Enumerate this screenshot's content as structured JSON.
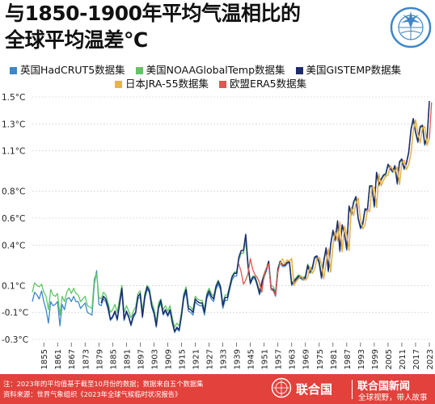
{
  "header": {
    "title_line1": "与1850-1900年平均气温相比的",
    "title_line2": "全球平均温差℃"
  },
  "legend": [
    {
      "name": "英国HadCRUT5数据集",
      "color": "#3f86c6"
    },
    {
      "name": "美国NOAAGlobalTemp数据集",
      "color": "#5cc765"
    },
    {
      "name": "美国GISTEMP数据集",
      "color": "#1d2b6b"
    },
    {
      "name": "日本JRA-55数据集",
      "color": "#e7b640"
    },
    {
      "name": "欧盟ERA5数据集",
      "color": "#e0584f"
    }
  ],
  "chart_data": {
    "type": "line",
    "x_range": [
      1850,
      2023
    ],
    "ylim": [
      -0.3,
      1.5
    ],
    "y_ticks": [
      "1.5°C",
      "1.3°C",
      "1.1°C",
      "0.8°C",
      "0.6°C",
      "0.4°C",
      "0.1°C",
      "-0.1°C",
      "-0.3°C"
    ],
    "y_tick_values": [
      1.5,
      1.3,
      1.1,
      0.8,
      0.6,
      0.4,
      0.1,
      -0.1,
      -0.3
    ],
    "x_ticks": [
      1855,
      1861,
      1867,
      1873,
      1879,
      1885,
      1891,
      1897,
      1903,
      1909,
      1915,
      1921,
      1927,
      1933,
      1939,
      1945,
      1951,
      1957,
      1963,
      1969,
      1975,
      1981,
      1987,
      1993,
      1999,
      2005,
      2011,
      2017,
      2023
    ],
    "grid": "horizontal",
    "series": [
      {
        "name": "英国HadCRUT5数据集",
        "color": "#3f86c6",
        "start": 1850,
        "values": [
          -0.02,
          0.05,
          0.03,
          0.0,
          0.06,
          -0.02,
          -0.08,
          -0.18,
          -0.02,
          -0.05,
          -0.04,
          -0.02,
          -0.2,
          -0.04,
          -0.08,
          0.0,
          0.01,
          -0.02,
          0.02,
          -0.02,
          -0.02,
          -0.07,
          -0.05,
          -0.03,
          -0.1,
          -0.11,
          -0.12,
          0.11,
          0.21,
          -0.04,
          -0.05,
          0.0,
          -0.02,
          -0.08,
          -0.16,
          -0.14,
          -0.1,
          -0.16,
          -0.05,
          0.06,
          -0.16,
          -0.1,
          -0.14,
          -0.2,
          -0.14,
          -0.11,
          0.0,
          0.02,
          -0.14,
          0.0,
          0.07,
          0.05,
          -0.06,
          -0.11,
          -0.21,
          -0.07,
          -0.03,
          -0.12,
          -0.09,
          -0.13,
          -0.09,
          -0.18,
          -0.25,
          -0.22,
          -0.24,
          -0.13,
          0.0,
          0.05,
          -0.09,
          -0.1,
          -0.12,
          -0.02,
          -0.04,
          -0.05,
          -0.05,
          -0.12,
          0.0,
          0.04,
          0.0,
          -0.02,
          0.07,
          0.11,
          0.07,
          -0.07,
          -0.01,
          -0.01,
          0.07,
          0.14,
          0.17,
          0.17,
          0.29,
          0.34,
          0.34,
          0.45,
          0.23,
          0.11,
          0.15,
          0.15,
          0.1,
          0.03,
          0.1,
          0.16,
          0.21,
          0.27,
          0.07,
          0.06,
          0.02,
          0.21,
          0.27,
          0.24,
          0.24,
          0.26,
          0.27,
          0.1,
          0.12,
          0.14,
          0.16,
          0.15,
          0.14,
          0.15,
          0.24,
          0.19,
          0.22,
          0.3,
          0.31,
          0.26,
          0.15,
          0.27,
          0.37,
          0.2,
          0.4,
          0.5,
          0.43,
          0.57,
          0.35,
          0.54,
          0.48,
          0.36,
          0.68,
          0.62,
          0.71,
          0.75,
          0.59,
          0.52,
          0.55,
          0.66,
          0.65,
          0.83,
          0.83,
          0.68,
          0.93,
          0.84,
          0.88,
          0.91,
          0.92,
          0.99,
          0.96,
          0.94,
          0.98,
          0.85,
          1.01,
          1.03,
          0.96,
          1.0,
          1.08,
          1.25,
          1.33,
          1.23,
          1.16,
          1.27,
          1.28,
          1.14,
          1.19,
          1.45
        ]
      },
      {
        "name": "美国NOAAGlobalTemp数据集",
        "color": "#5cc765",
        "start": 1850,
        "values": [
          0.05,
          0.12,
          0.1,
          0.09,
          0.11,
          0.05,
          0.02,
          -0.08,
          0.07,
          0.03,
          0.02,
          0.04,
          -0.12,
          0.02,
          -0.02,
          0.05,
          0.08,
          0.04,
          0.08,
          0.04,
          0.03,
          -0.02,
          0.0,
          0.02,
          -0.05,
          -0.06,
          -0.07,
          0.15,
          0.19,
          0.01,
          0.0,
          0.05,
          0.03,
          -0.03,
          -0.1,
          -0.08,
          -0.04,
          -0.1,
          0.0,
          0.1,
          -0.1,
          -0.05,
          -0.09,
          -0.14,
          -0.09,
          -0.06,
          0.04,
          0.06,
          -0.09,
          0.04,
          0.1,
          0.08,
          -0.02,
          -0.07,
          -0.17,
          -0.03,
          0.0,
          -0.08,
          -0.05,
          -0.09,
          -0.05,
          -0.14,
          -0.21,
          -0.18,
          -0.2,
          -0.09,
          0.04,
          0.09,
          -0.05,
          -0.06,
          -0.08,
          0.02,
          0.0,
          -0.01,
          -0.01,
          -0.08,
          0.04,
          0.08,
          0.04,
          0.02,
          0.1,
          0.14,
          0.1,
          -0.03,
          0.03,
          0.03,
          0.1,
          0.17,
          0.2,
          0.2,
          0.3,
          0.34,
          0.34,
          0.43,
          0.24,
          0.13,
          0.17,
          0.17,
          0.12,
          0.06,
          0.13,
          0.19,
          0.23,
          0.28,
          0.1,
          0.09,
          0.05,
          0.23,
          0.28,
          0.26,
          0.25,
          0.27,
          0.28,
          0.12,
          0.14,
          0.16,
          0.18,
          0.17,
          0.16,
          0.17,
          0.26,
          0.21,
          0.24,
          0.31,
          0.32,
          0.28,
          0.18,
          0.29,
          0.38,
          0.22,
          0.41,
          0.5,
          0.44,
          0.57,
          0.37,
          0.55,
          0.49,
          0.38,
          0.68,
          0.63,
          0.71,
          0.76,
          0.6,
          0.54,
          0.57,
          0.67,
          0.66,
          0.83,
          0.83,
          0.69,
          0.93,
          0.85,
          0.88,
          0.91,
          0.92,
          0.99,
          0.97,
          0.95,
          0.98,
          0.86,
          1.01,
          1.03,
          0.97,
          1.01,
          1.09,
          1.25,
          1.33,
          1.23,
          1.17,
          1.27,
          1.28,
          1.15,
          1.2,
          1.44
        ]
      },
      {
        "name": "美国GISTEMP数据集",
        "color": "#1d2b6b",
        "start": 1880,
        "values": [
          -0.03,
          0.02,
          0.0,
          -0.06,
          -0.15,
          -0.13,
          -0.09,
          -0.15,
          -0.04,
          0.08,
          -0.15,
          -0.09,
          -0.13,
          -0.19,
          -0.12,
          -0.1,
          0.02,
          0.04,
          -0.13,
          0.02,
          0.09,
          0.06,
          -0.05,
          -0.1,
          -0.2,
          -0.06,
          -0.01,
          -0.11,
          -0.08,
          -0.12,
          -0.08,
          -0.17,
          -0.24,
          -0.21,
          -0.23,
          -0.12,
          0.02,
          0.07,
          -0.07,
          -0.08,
          -0.1,
          0.0,
          -0.02,
          -0.03,
          -0.03,
          -0.1,
          0.02,
          0.06,
          0.02,
          0.0,
          0.09,
          0.13,
          0.09,
          -0.05,
          0.01,
          0.01,
          0.09,
          0.16,
          0.19,
          0.19,
          0.31,
          0.36,
          0.36,
          0.48,
          0.25,
          0.12,
          0.16,
          0.16,
          0.11,
          0.04,
          0.12,
          0.18,
          0.22,
          0.28,
          0.08,
          0.07,
          0.03,
          0.22,
          0.28,
          0.25,
          0.25,
          0.27,
          0.28,
          0.11,
          0.13,
          0.15,
          0.17,
          0.16,
          0.15,
          0.16,
          0.25,
          0.2,
          0.23,
          0.31,
          0.32,
          0.27,
          0.16,
          0.28,
          0.38,
          0.21,
          0.41,
          0.51,
          0.44,
          0.58,
          0.36,
          0.55,
          0.49,
          0.37,
          0.69,
          0.63,
          0.72,
          0.76,
          0.6,
          0.53,
          0.56,
          0.67,
          0.66,
          0.84,
          0.84,
          0.69,
          0.94,
          0.85,
          0.89,
          0.92,
          0.93,
          1.0,
          0.97,
          0.95,
          0.99,
          0.86,
          1.02,
          1.04,
          0.97,
          1.01,
          1.09,
          1.26,
          1.34,
          1.24,
          1.17,
          1.28,
          1.29,
          1.15,
          1.2,
          1.47
        ]
      },
      {
        "name": "日本JRA-55数据集",
        "color": "#e7b640",
        "start": 1958,
        "values": [
          0.26,
          0.3,
          0.26,
          0.29,
          0.28,
          0.3,
          0.1,
          0.13,
          0.15,
          0.17,
          0.15,
          0.14,
          0.16,
          0.24,
          0.19,
          0.22,
          0.3,
          0.31,
          0.26,
          0.15,
          0.27,
          0.37,
          0.2,
          0.4,
          0.5,
          0.43,
          0.57,
          0.35,
          0.54,
          0.48,
          0.36,
          0.68,
          0.62,
          0.71,
          0.75,
          0.59,
          0.52,
          0.55,
          0.66,
          0.65,
          0.83,
          0.83,
          0.68,
          0.93,
          0.84,
          0.88,
          0.91,
          0.92,
          0.99,
          0.96,
          0.94,
          0.98,
          0.85,
          1.01,
          1.03,
          0.96,
          1.0,
          1.08,
          1.25,
          1.33,
          1.23,
          1.16,
          1.27,
          1.28,
          1.14,
          1.19
        ]
      },
      {
        "name": "欧盟ERA5数据集",
        "color": "#e0584f",
        "start": 1940,
        "values": [
          0.26,
          0.2,
          0.11,
          0.14,
          0.19,
          0.3,
          0.22,
          0.18,
          0.16,
          0.12,
          0.05,
          0.18,
          0.23,
          0.26,
          0.08,
          0.06,
          0.03,
          0.2,
          0.27,
          0.25,
          0.26,
          0.29,
          0.28,
          0.3,
          0.11,
          0.13,
          0.15,
          0.17,
          0.15,
          0.14,
          0.16,
          0.24,
          0.19,
          0.22,
          0.3,
          0.31,
          0.26,
          0.15,
          0.27,
          0.37,
          0.2,
          0.4,
          0.5,
          0.43,
          0.57,
          0.35,
          0.54,
          0.48,
          0.36,
          0.68,
          0.62,
          0.71,
          0.75,
          0.59,
          0.52,
          0.55,
          0.66,
          0.65,
          0.83,
          0.83,
          0.68,
          0.93,
          0.84,
          0.88,
          0.91,
          0.92,
          0.99,
          0.96,
          0.94,
          0.98,
          0.85,
          1.01,
          1.03,
          0.96,
          1.0,
          1.08,
          1.25,
          1.33,
          1.23,
          1.16,
          1.27,
          1.28,
          1.14,
          1.19,
          1.46
        ]
      }
    ]
  },
  "footer": {
    "note_line1": "注：2023年的平均值基于截至10月份的数据；数据来自五个数据集",
    "note_line2": "资料来源：世界气象组织《2023年全球气候临时状况报告》",
    "brand1": "联合国",
    "brand2": "联合国新闻",
    "slogan": "全球视野，带人故事"
  }
}
